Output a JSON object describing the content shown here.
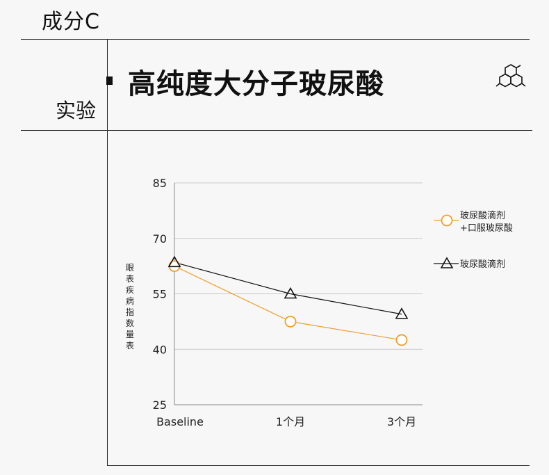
{
  "header": {
    "ingredient": "成分C",
    "experiment": "实验",
    "heading": "高纯度大分子玻尿酸"
  },
  "icons": {
    "molecule": "molecule-hexagon-icon"
  },
  "colors": {
    "orange": "#f19e2c",
    "black": "#111111",
    "grid": "#c8c8c8"
  },
  "chart_data": {
    "type": "line",
    "categories": [
      "Baseline",
      "1个月",
      "3个月"
    ],
    "ylabel": "眼表疾病指数量表",
    "ylim": [
      25,
      85
    ],
    "yticks": [
      85,
      70,
      55,
      40,
      25
    ],
    "grid": true,
    "legend_position": "right",
    "series": [
      {
        "name": "玻尿酸滴剂+口服玻尿酸",
        "legend_lines": [
          "玻尿酸滴剂",
          "+口服玻尿酸"
        ],
        "marker": "circle",
        "color": "#f19e2c",
        "values": [
          62.5,
          47.5,
          42.5
        ]
      },
      {
        "name": "玻尿酸滴剂",
        "legend_lines": [
          "玻尿酸滴剂"
        ],
        "marker": "triangle",
        "color": "#111111",
        "values": [
          63.5,
          55.0,
          49.5
        ]
      }
    ]
  }
}
